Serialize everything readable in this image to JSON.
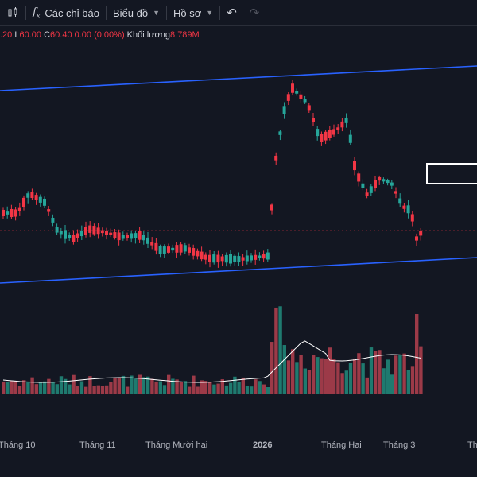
{
  "toolbar": {
    "indicators_label": "Các chỉ báo",
    "chart_label": "Biểu đồ",
    "profile_label": "Hồ sơ"
  },
  "legend": {
    "open_tail": ".20",
    "low_key": "L",
    "low_value": "60.00",
    "close_key": "C",
    "close_value": "60.40",
    "change": "0.00 (0.00%)",
    "volume_key": "Khối lượng",
    "volume_value": "8.789M"
  },
  "colors": {
    "bg": "#131722",
    "up": "#26a69a",
    "down": "#f23645",
    "up_vol": "#1f7a6f",
    "down_vol": "#9c3a48",
    "trend": "#2962ff",
    "ma": "#ffffff"
  },
  "chart_data": {
    "type": "candlestick",
    "x_labels": [
      "Tháng 10",
      "Tháng 11",
      "Tháng Mười hai",
      "2026",
      "Tháng Hai",
      "Tháng 3",
      "Th"
    ],
    "trend_lines": "upper and lower channel lines",
    "candles_description": "daily OHLC with volume histogram and volume moving average"
  }
}
